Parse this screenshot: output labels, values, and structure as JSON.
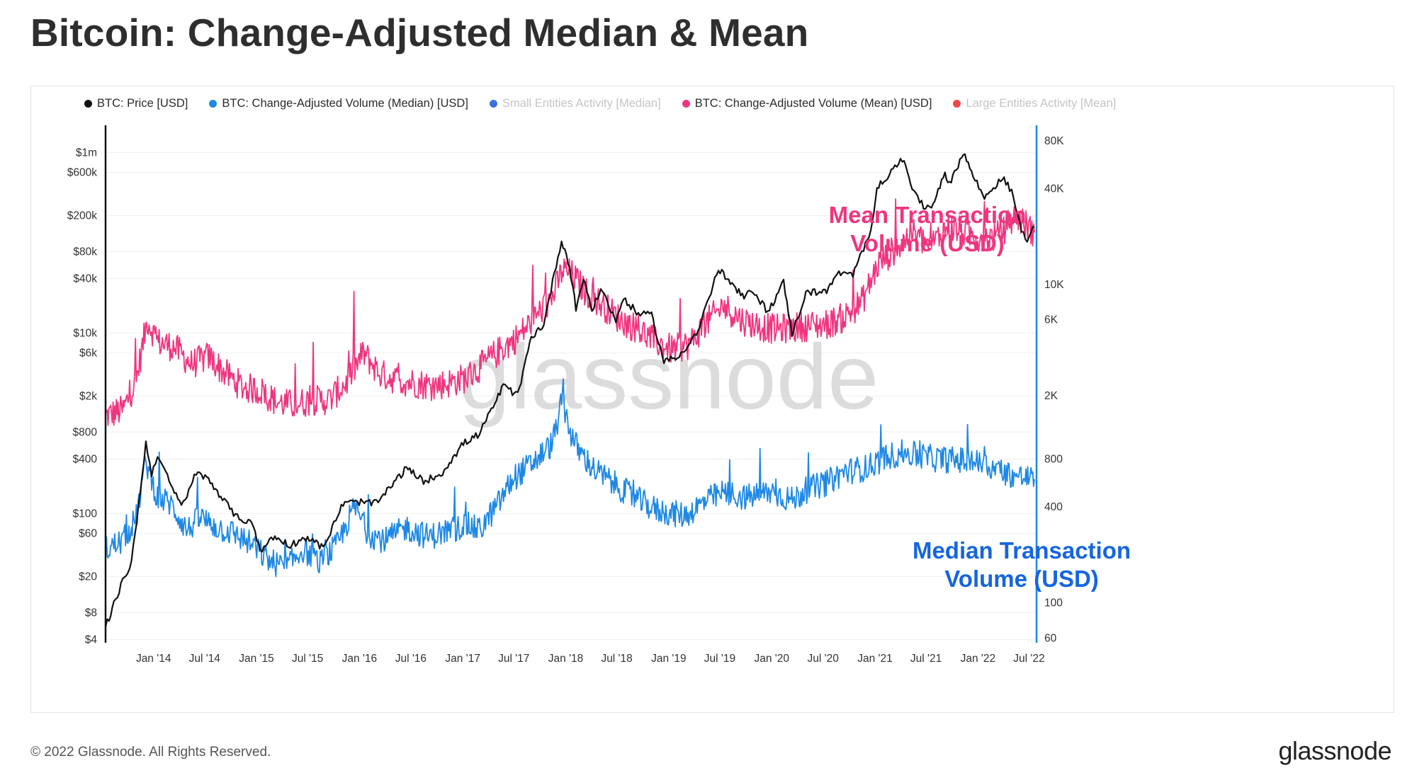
{
  "title": "Bitcoin: Change-Adjusted Median & Mean",
  "footer": {
    "copyright": "© 2022 Glassnode. All Rights Reserved.",
    "logo_text": "glassnode"
  },
  "watermark": "glassnode",
  "legend": [
    {
      "label": "BTC: Price [USD]",
      "color": "#111111",
      "muted": false
    },
    {
      "label": "BTC: Change-Adjusted Volume (Median) [USD]",
      "color": "#1e88e5",
      "muted": false
    },
    {
      "label": "Small Entities Activity [Median]",
      "color": "#3b6fe0",
      "muted": true
    },
    {
      "label": "BTC: Change-Adjusted Volume (Mean) [USD]",
      "color": "#f0357f",
      "muted": false
    },
    {
      "label": "Large Entities Activity [Mean]",
      "color": "#f04848",
      "muted": true
    }
  ],
  "annotations": {
    "mean": [
      "Mean Transaction",
      "Volume (USD)"
    ],
    "median": [
      "Median Transaction",
      "Volume (USD)"
    ]
  },
  "chart_data": {
    "type": "line",
    "x_ticks": [
      "Jan '14",
      "Jul '14",
      "Jan '15",
      "Jul '15",
      "Jan '16",
      "Jul '16",
      "Jan '17",
      "Jul '17",
      "Jan '18",
      "Jul '18",
      "Jan '19",
      "Jul '19",
      "Jan '20",
      "Jul '20",
      "Jan '21",
      "Jul '21",
      "Jan '22",
      "Jul '22"
    ],
    "x_range": [
      "2013-07-15",
      "2022-07-25"
    ],
    "left_axis": {
      "scale": "log",
      "ticks": [
        {
          "label": "$1m",
          "value": 1000000
        },
        {
          "label": "$600k",
          "value": 600000
        },
        {
          "label": "$200k",
          "value": 200000
        },
        {
          "label": "$80k",
          "value": 80000
        },
        {
          "label": "$40k",
          "value": 40000
        },
        {
          "label": "$10k",
          "value": 10000
        },
        {
          "label": "$6k",
          "value": 6000
        },
        {
          "label": "$2k",
          "value": 2000
        },
        {
          "label": "$800",
          "value": 800
        },
        {
          "label": "$400",
          "value": 400
        },
        {
          "label": "$100",
          "value": 100
        },
        {
          "label": "$60",
          "value": 60
        },
        {
          "label": "$20",
          "value": 20
        },
        {
          "label": "$8",
          "value": 8
        },
        {
          "label": "$4",
          "value": 4
        }
      ],
      "range": [
        3.7,
        2000000
      ]
    },
    "right_axis": {
      "scale": "log",
      "ticks": [
        {
          "label": "80K",
          "value": 80000
        },
        {
          "label": "40K",
          "value": 40000
        },
        {
          "label": "10K",
          "value": 10000
        },
        {
          "label": "6K",
          "value": 6000
        },
        {
          "label": "2K",
          "value": 2000
        },
        {
          "label": "800",
          "value": 800
        },
        {
          "label": "400",
          "value": 400
        },
        {
          "label": "100",
          "value": 100
        },
        {
          "label": "60",
          "value": 60
        }
      ],
      "range": [
        56,
        100000
      ]
    },
    "series": [
      {
        "name": "BTC: Price [USD]",
        "axis": "right",
        "color": "#111111",
        "points": [
          [
            "2013-07-15",
            70
          ],
          [
            "2013-09-01",
            120
          ],
          [
            "2013-10-15",
            180
          ],
          [
            "2013-11-15",
            500
          ],
          [
            "2013-12-05",
            1000
          ],
          [
            "2013-12-25",
            650
          ],
          [
            "2014-01-15",
            850
          ],
          [
            "2014-02-25",
            580
          ],
          [
            "2014-04-10",
            400
          ],
          [
            "2014-06-01",
            650
          ],
          [
            "2014-07-15",
            600
          ],
          [
            "2014-09-15",
            420
          ],
          [
            "2014-11-01",
            330
          ],
          [
            "2014-12-15",
            330
          ],
          [
            "2015-01-14",
            210
          ],
          [
            "2015-03-01",
            260
          ],
          [
            "2015-05-01",
            230
          ],
          [
            "2015-07-01",
            260
          ],
          [
            "2015-08-25",
            220
          ],
          [
            "2015-11-04",
            420
          ],
          [
            "2015-12-31",
            430
          ],
          [
            "2016-03-01",
            420
          ],
          [
            "2016-06-15",
            700
          ],
          [
            "2016-08-15",
            580
          ],
          [
            "2016-10-15",
            640
          ],
          [
            "2017-01-03",
            1000
          ],
          [
            "2017-03-01",
            1150
          ],
          [
            "2017-05-25",
            2300
          ],
          [
            "2017-07-15",
            2000
          ],
          [
            "2017-09-01",
            4700
          ],
          [
            "2017-10-15",
            5600
          ],
          [
            "2017-12-17",
            19000
          ],
          [
            "2018-01-15",
            13000
          ],
          [
            "2018-02-06",
            7000
          ],
          [
            "2018-03-05",
            11000
          ],
          [
            "2018-04-05",
            6800
          ],
          [
            "2018-05-05",
            9500
          ],
          [
            "2018-06-28",
            5900
          ],
          [
            "2018-07-25",
            8200
          ],
          [
            "2018-09-15",
            6500
          ],
          [
            "2018-11-01",
            6400
          ],
          [
            "2018-12-15",
            3300
          ],
          [
            "2019-02-01",
            3450
          ],
          [
            "2019-04-15",
            5100
          ],
          [
            "2019-06-26",
            12500
          ],
          [
            "2019-08-01",
            10500
          ],
          [
            "2019-09-25",
            8200
          ],
          [
            "2019-10-26",
            9300
          ],
          [
            "2019-12-18",
            6700
          ],
          [
            "2020-02-12",
            10300
          ],
          [
            "2020-03-13",
            4900
          ],
          [
            "2020-05-01",
            8800
          ],
          [
            "2020-07-20",
            9200
          ],
          [
            "2020-08-20",
            11800
          ],
          [
            "2020-10-15",
            11400
          ],
          [
            "2020-12-17",
            22000
          ],
          [
            "2021-01-08",
            40000
          ],
          [
            "2021-02-15",
            48000
          ],
          [
            "2021-04-14",
            63000
          ],
          [
            "2021-05-19",
            37000
          ],
          [
            "2021-06-22",
            31000
          ],
          [
            "2021-07-20",
            30500
          ],
          [
            "2021-09-06",
            51000
          ],
          [
            "2021-09-22",
            42000
          ],
          [
            "2021-11-10",
            68000
          ],
          [
            "2021-12-15",
            48000
          ],
          [
            "2022-01-24",
            35000
          ],
          [
            "2022-03-28",
            47000
          ],
          [
            "2022-04-30",
            38500
          ],
          [
            "2022-05-15",
            30000
          ],
          [
            "2022-06-18",
            18500
          ],
          [
            "2022-07-20",
            23000
          ]
        ]
      },
      {
        "name": "BTC: Change-Adjusted Volume (Median) [USD]",
        "axis": "left",
        "color": "#1e88e5",
        "points": [
          [
            "2013-07-15",
            40
          ],
          [
            "2013-09-15",
            50
          ],
          [
            "2013-11-01",
            90
          ],
          [
            "2013-12-05",
            380
          ],
          [
            "2014-01-15",
            150
          ],
          [
            "2014-03-01",
            130
          ],
          [
            "2014-05-01",
            65
          ],
          [
            "2014-06-15",
            90
          ],
          [
            "2014-08-15",
            70
          ],
          [
            "2014-10-15",
            60
          ],
          [
            "2014-12-15",
            45
          ],
          [
            "2015-02-15",
            30
          ],
          [
            "2015-04-15",
            25
          ],
          [
            "2015-06-15",
            40
          ],
          [
            "2015-08-15",
            28
          ],
          [
            "2015-10-15",
            45
          ],
          [
            "2015-12-15",
            120
          ],
          [
            "2016-02-01",
            60
          ],
          [
            "2016-04-01",
            50
          ],
          [
            "2016-06-15",
            70
          ],
          [
            "2016-09-01",
            55
          ],
          [
            "2016-11-15",
            65
          ],
          [
            "2017-01-15",
            75
          ],
          [
            "2017-03-01",
            65
          ],
          [
            "2017-05-01",
            120
          ],
          [
            "2017-07-01",
            250
          ],
          [
            "2017-09-01",
            350
          ],
          [
            "2017-11-15",
            600
          ],
          [
            "2017-12-20",
            1800
          ],
          [
            "2018-01-20",
            750
          ],
          [
            "2018-02-15",
            500
          ],
          [
            "2018-04-15",
            300
          ],
          [
            "2018-06-15",
            220
          ],
          [
            "2018-09-01",
            150
          ],
          [
            "2018-11-15",
            110
          ],
          [
            "2019-01-15",
            100
          ],
          [
            "2019-03-01",
            95
          ],
          [
            "2019-05-15",
            140
          ],
          [
            "2019-07-15",
            170
          ],
          [
            "2019-10-01",
            150
          ],
          [
            "2020-01-01",
            175
          ],
          [
            "2020-03-15",
            140
          ],
          [
            "2020-05-01",
            180
          ],
          [
            "2020-07-15",
            220
          ],
          [
            "2020-09-15",
            290
          ],
          [
            "2020-12-01",
            320
          ],
          [
            "2021-02-15",
            430
          ],
          [
            "2021-04-15",
            470
          ],
          [
            "2021-06-15",
            430
          ],
          [
            "2021-08-15",
            400
          ],
          [
            "2021-11-01",
            390
          ],
          [
            "2022-01-15",
            360
          ],
          [
            "2022-03-15",
            300
          ],
          [
            "2022-05-15",
            260
          ],
          [
            "2022-07-20",
            240
          ]
        ]
      },
      {
        "name": "BTC: Change-Adjusted Volume (Mean) [USD]",
        "axis": "left",
        "color": "#f0357f",
        "points": [
          [
            "2013-07-15",
            1200
          ],
          [
            "2013-09-15",
            1400
          ],
          [
            "2013-11-01",
            3000
          ],
          [
            "2013-12-10",
            14000
          ],
          [
            "2014-01-15",
            8000
          ],
          [
            "2014-03-15",
            7000
          ],
          [
            "2014-05-15",
            4500
          ],
          [
            "2014-07-15",
            5500
          ],
          [
            "2014-09-15",
            3500
          ],
          [
            "2014-11-15",
            2500
          ],
          [
            "2015-01-15",
            2300
          ],
          [
            "2015-03-15",
            1700
          ],
          [
            "2015-05-15",
            1600
          ],
          [
            "2015-07-15",
            1800
          ],
          [
            "2015-09-15",
            1800
          ],
          [
            "2015-11-15",
            2800
          ],
          [
            "2016-01-15",
            6000
          ],
          [
            "2016-03-15",
            3500
          ],
          [
            "2016-05-15",
            3000
          ],
          [
            "2016-07-15",
            2800
          ],
          [
            "2016-09-15",
            2600
          ],
          [
            "2016-11-15",
            2800
          ],
          [
            "2017-01-15",
            3200
          ],
          [
            "2017-03-15",
            4500
          ],
          [
            "2017-05-15",
            6500
          ],
          [
            "2017-07-15",
            9000
          ],
          [
            "2017-09-15",
            15000
          ],
          [
            "2017-11-15",
            25000
          ],
          [
            "2017-12-20",
            50000
          ],
          [
            "2018-01-20",
            45000
          ],
          [
            "2018-03-15",
            28000
          ],
          [
            "2018-05-15",
            20000
          ],
          [
            "2018-07-15",
            14000
          ],
          [
            "2018-09-15",
            11000
          ],
          [
            "2018-11-15",
            8000
          ],
          [
            "2019-01-15",
            6500
          ],
          [
            "2019-03-15",
            7500
          ],
          [
            "2019-05-15",
            13000
          ],
          [
            "2019-07-15",
            20000
          ],
          [
            "2019-09-15",
            14000
          ],
          [
            "2019-11-15",
            12000
          ],
          [
            "2020-01-15",
            11000
          ],
          [
            "2020-03-15",
            11500
          ],
          [
            "2020-05-15",
            12000
          ],
          [
            "2020-07-15",
            12500
          ],
          [
            "2020-09-15",
            15000
          ],
          [
            "2020-11-15",
            22000
          ],
          [
            "2021-01-15",
            60000
          ],
          [
            "2021-03-15",
            85000
          ],
          [
            "2021-05-15",
            130000
          ],
          [
            "2021-07-15",
            90000
          ],
          [
            "2021-09-15",
            150000
          ],
          [
            "2021-11-15",
            130000
          ],
          [
            "2022-01-15",
            110000
          ],
          [
            "2022-03-15",
            120000
          ],
          [
            "2022-05-15",
            200000
          ],
          [
            "2022-07-20",
            130000
          ]
        ]
      }
    ],
    "legend_position": "top-left",
    "grid": true
  }
}
